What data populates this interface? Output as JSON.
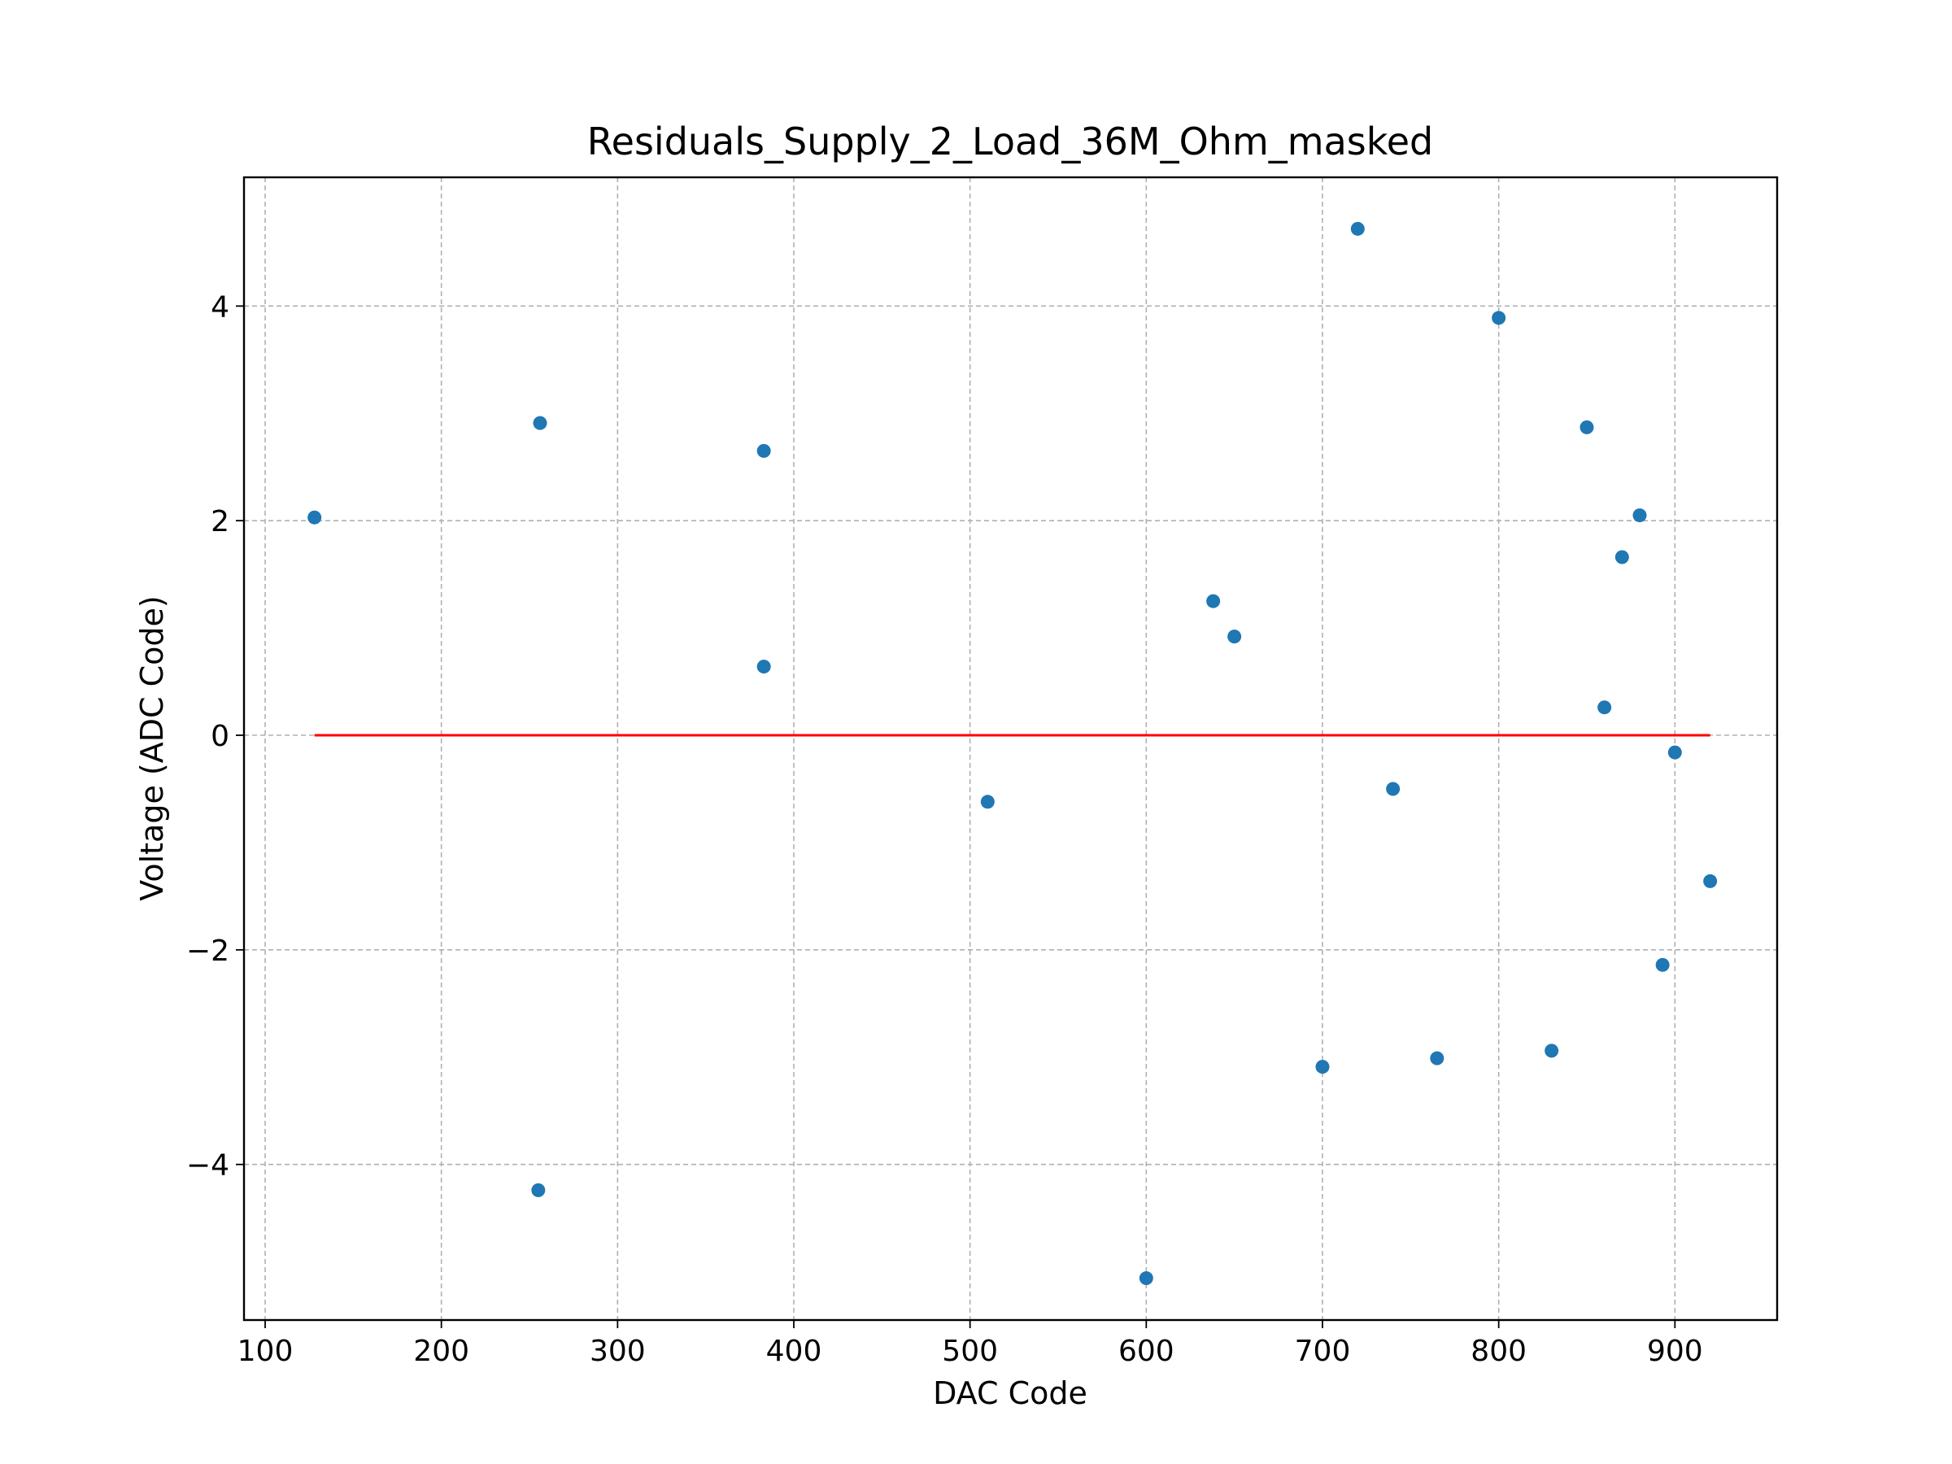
{
  "chart_data": {
    "type": "scatter",
    "title": "Residuals_Supply_2_Load_36M_Ohm_masked",
    "xlabel": "DAC Code",
    "ylabel": "Voltage (ADC Code)",
    "xlim": [
      88,
      958
    ],
    "ylim": [
      -5.45,
      5.2
    ],
    "xticks": [
      100,
      200,
      300,
      400,
      500,
      600,
      700,
      800,
      900
    ],
    "yticks": [
      -4,
      -2,
      0,
      2,
      4
    ],
    "ytick_labels": [
      "−4",
      "−2",
      "0",
      "2",
      "4"
    ],
    "grid": true,
    "colors": {
      "points": "#1f77b4",
      "zero_line": "#ff0000"
    },
    "zero_line": {
      "x": [
        128,
        920
      ],
      "y": 0
    },
    "points": [
      {
        "x": 128,
        "y": 2.03
      },
      {
        "x": 255,
        "y": -4.24
      },
      {
        "x": 256,
        "y": 2.91
      },
      {
        "x": 383,
        "y": 2.65
      },
      {
        "x": 383,
        "y": 0.64
      },
      {
        "x": 510,
        "y": -0.62
      },
      {
        "x": 600,
        "y": -5.06
      },
      {
        "x": 638,
        "y": 1.25
      },
      {
        "x": 650,
        "y": 0.92
      },
      {
        "x": 700,
        "y": -3.09
      },
      {
        "x": 720,
        "y": 4.72
      },
      {
        "x": 740,
        "y": -0.5
      },
      {
        "x": 765,
        "y": -3.01
      },
      {
        "x": 800,
        "y": 3.89
      },
      {
        "x": 830,
        "y": -2.94
      },
      {
        "x": 850,
        "y": 2.87
      },
      {
        "x": 860,
        "y": 0.26
      },
      {
        "x": 870,
        "y": 1.66
      },
      {
        "x": 880,
        "y": 2.05
      },
      {
        "x": 893,
        "y": -2.14
      },
      {
        "x": 900,
        "y": -0.16
      },
      {
        "x": 920,
        "y": -1.36
      }
    ]
  }
}
